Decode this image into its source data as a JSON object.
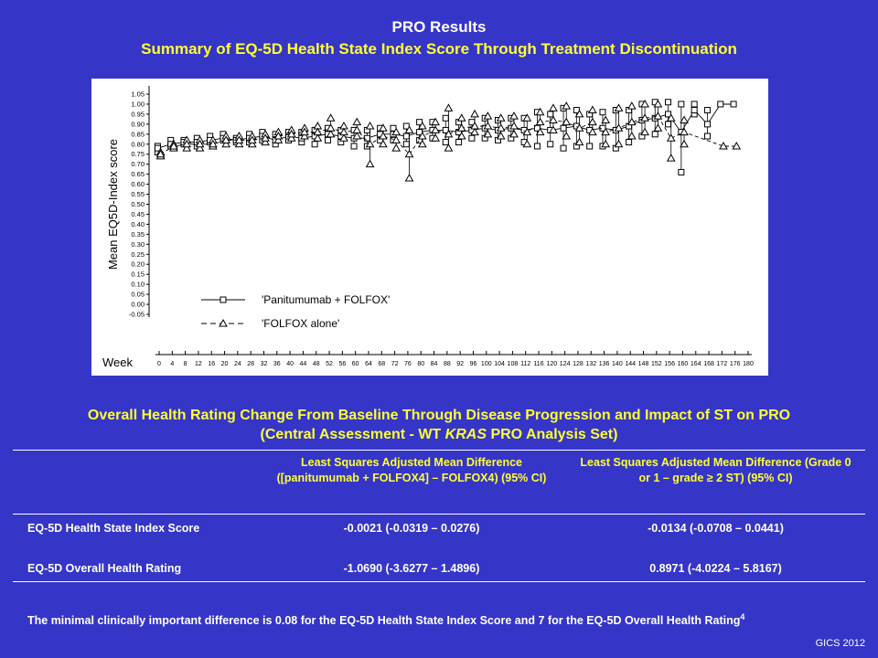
{
  "header": {
    "title": "PRO Results",
    "subtitle": "Summary of EQ-5D Health State Index Score Through Treatment Discontinuation"
  },
  "chart_data": {
    "type": "line",
    "ylabel": "Mean EQ5D-Index score",
    "xlabel": "Week",
    "ylim": [
      -0.05,
      1.05
    ],
    "yticks": [
      "1.05",
      "1.00",
      "0.95",
      "0.90",
      "0.85",
      "0.80",
      "0.75",
      "0.70",
      "0.65",
      "0.60",
      "0.55",
      "0.50",
      "0.45",
      "0.40",
      "0.35",
      "0.30",
      "0.25",
      "0.20",
      "0.15",
      "0.10",
      "0.05",
      "0.00",
      "-0.05"
    ],
    "x": [
      0,
      4,
      8,
      12,
      16,
      20,
      24,
      28,
      32,
      36,
      40,
      44,
      48,
      52,
      56,
      60,
      64,
      68,
      72,
      76,
      80,
      84,
      88,
      92,
      96,
      100,
      104,
      108,
      112,
      116,
      120,
      124,
      128,
      132,
      136,
      140,
      144,
      148,
      152,
      156,
      160,
      164,
      168,
      172,
      176,
      180
    ],
    "legend_position": "lower-center",
    "colors": {
      "panitumumab": "#ffffff",
      "folfox": "#ffffff"
    },
    "series": [
      {
        "name": "'Panitumumab + FOLFOX'",
        "marker": "square",
        "values": [
          0.78,
          0.8,
          0.81,
          0.81,
          0.82,
          0.83,
          0.82,
          0.83,
          0.84,
          0.82,
          0.84,
          0.83,
          0.84,
          0.85,
          0.84,
          0.83,
          0.83,
          0.85,
          0.85,
          0.84,
          0.86,
          0.87,
          0.87,
          0.86,
          0.87,
          0.88,
          0.87,
          0.88,
          0.87,
          0.88,
          0.87,
          0.88,
          0.89,
          0.87,
          0.88,
          0.87,
          0.89,
          0.92,
          0.93,
          0.95,
          0.86,
          0.97,
          0.9,
          1.0,
          1.0,
          null
        ],
        "lower": [
          0.76,
          0.79,
          0.8,
          0.79,
          0.81,
          0.82,
          0.81,
          0.81,
          0.82,
          0.8,
          0.82,
          0.81,
          0.8,
          0.82,
          0.81,
          0.79,
          0.79,
          0.82,
          0.82,
          0.8,
          0.82,
          0.83,
          0.81,
          0.81,
          0.83,
          0.83,
          0.82,
          0.83,
          0.81,
          0.79,
          0.8,
          0.78,
          0.79,
          0.79,
          0.79,
          0.78,
          0.81,
          0.84,
          0.85,
          0.9,
          0.66,
          0.95,
          0.84,
          1.0,
          1.0,
          null
        ],
        "upper": [
          0.79,
          0.82,
          0.82,
          0.83,
          0.84,
          0.85,
          0.83,
          0.85,
          0.86,
          0.85,
          0.86,
          0.86,
          0.87,
          0.88,
          0.87,
          0.87,
          0.87,
          0.88,
          0.88,
          0.89,
          0.91,
          0.91,
          0.93,
          0.91,
          0.91,
          0.93,
          0.92,
          0.93,
          0.93,
          0.96,
          0.95,
          0.98,
          0.97,
          0.95,
          0.96,
          0.97,
          0.97,
          1.0,
          1.01,
          1.01,
          1.0,
          1.0,
          0.97,
          1.0,
          1.0,
          null
        ]
      },
      {
        "name": "'FOLFOX alone'",
        "marker": "triangle",
        "values": [
          0.75,
          0.79,
          0.8,
          0.8,
          0.8,
          0.82,
          0.82,
          0.82,
          0.83,
          0.84,
          0.85,
          0.86,
          0.86,
          0.88,
          0.86,
          0.87,
          0.8,
          0.84,
          0.82,
          0.75,
          0.84,
          0.87,
          0.85,
          0.88,
          0.89,
          0.89,
          0.88,
          0.89,
          0.86,
          0.91,
          0.92,
          0.91,
          0.88,
          0.91,
          0.86,
          0.88,
          0.91,
          0.93,
          0.94,
          0.83,
          0.86,
          null,
          null,
          0.79,
          0.79,
          null
        ],
        "lower": [
          0.74,
          0.78,
          0.78,
          0.78,
          0.79,
          0.8,
          0.8,
          0.8,
          0.81,
          0.82,
          0.83,
          0.84,
          0.83,
          0.85,
          0.83,
          0.84,
          0.7,
          0.8,
          0.78,
          0.63,
          0.8,
          0.83,
          0.78,
          0.84,
          0.86,
          0.85,
          0.84,
          0.85,
          0.8,
          0.86,
          0.87,
          0.84,
          0.81,
          0.86,
          0.8,
          0.8,
          0.84,
          0.86,
          0.88,
          0.73,
          0.8,
          null,
          null,
          0.79,
          0.79,
          null
        ],
        "upper": [
          0.76,
          0.8,
          0.82,
          0.82,
          0.82,
          0.84,
          0.84,
          0.84,
          0.85,
          0.86,
          0.87,
          0.88,
          0.89,
          0.93,
          0.89,
          0.91,
          0.89,
          0.88,
          0.86,
          0.87,
          0.89,
          0.91,
          0.98,
          0.93,
          0.95,
          0.94,
          0.93,
          0.94,
          0.93,
          0.96,
          0.98,
          0.99,
          0.95,
          0.97,
          0.92,
          0.98,
          0.99,
          1.0,
          1.0,
          0.93,
          0.92,
          null,
          null,
          0.79,
          0.79,
          null
        ]
      }
    ]
  },
  "section": {
    "title_line1": "Overall Health Rating Change From Baseline Through Disease Progression and Impact of ST on PRO",
    "title_line2_pre": "(Central Assessment - WT ",
    "title_line2_em": "KRAS",
    "title_line2_post": " PRO Analysis Set)"
  },
  "table": {
    "col1_header": "Least Squares Adjusted Mean Difference ([panitumumab + FOLFOX4] – FOLFOX4) (95% CI)",
    "col2_header": "Least Squares Adjusted Mean Difference (Grade 0 or 1 – grade ≥ 2 ST) (95% CI)",
    "rows": [
      {
        "label": "EQ-5D Health State Index Score",
        "c1": "-0.0021 (-0.0319 – 0.0276)",
        "c2": "-0.0134 (-0.0708 – 0.0441)"
      },
      {
        "label": "EQ-5D Overall Health Rating",
        "c1": "-1.0690 (-3.6277 – 1.4896)",
        "c2": "0.8971 (-4.0224 – 5.8167)"
      }
    ]
  },
  "footnote": {
    "text": "The minimal clinically important difference is 0.08 for the EQ-5D Health State Index Score and 7 for the EQ-5D Overall Health Rating",
    "superscript": "4"
  },
  "credit": "GICS 2012"
}
